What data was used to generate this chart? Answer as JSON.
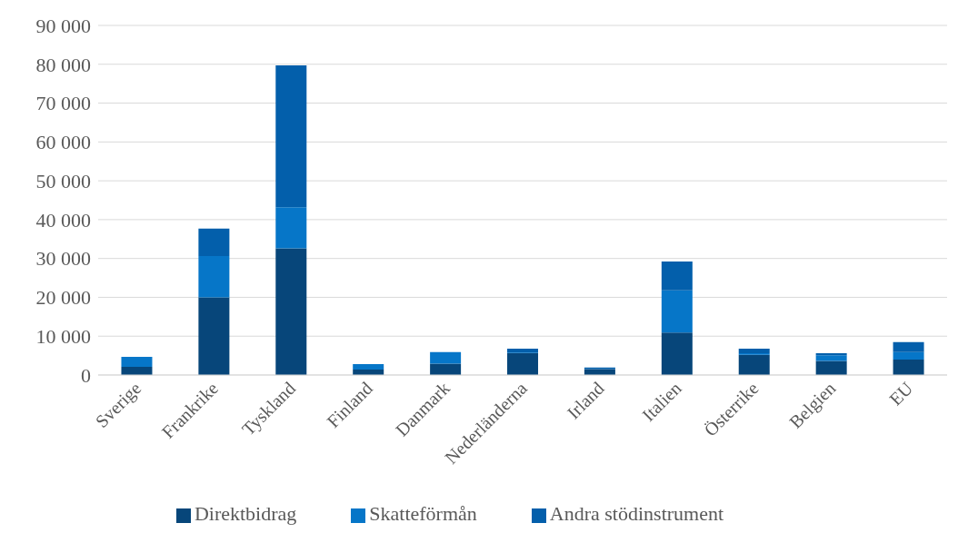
{
  "chart_data": {
    "type": "bar",
    "stacked": true,
    "categories": [
      "Sverige",
      "Frankrike",
      "Tyskland",
      "Finland",
      "Danmark",
      "Nederländerna",
      "Irland",
      "Italien",
      "Österrike",
      "Belgien",
      "EU"
    ],
    "series": [
      {
        "name": "Direktbidrag",
        "color": "#07467a",
        "values": [
          2100,
          20000,
          32600,
          1400,
          2900,
          5600,
          1500,
          10900,
          5200,
          3600,
          4000
        ]
      },
      {
        "name": "Skatteförmån",
        "color": "#0676c8",
        "values": [
          2600,
          10600,
          10600,
          1400,
          3000,
          200,
          0,
          10900,
          400,
          1500,
          1900
        ]
      },
      {
        "name": "Andra stödinstrument",
        "color": "#035fab",
        "values": [
          0,
          7100,
          36500,
          0,
          0,
          1000,
          400,
          7400,
          1200,
          500,
          2600
        ]
      }
    ],
    "ylim": [
      0,
      90000
    ],
    "yticks": [
      {
        "value": 0,
        "label": "0"
      },
      {
        "value": 10000,
        "label": "10 000"
      },
      {
        "value": 20000,
        "label": "20 000"
      },
      {
        "value": 30000,
        "label": "30 000"
      },
      {
        "value": 40000,
        "label": "40 000"
      },
      {
        "value": 50000,
        "label": "50 000"
      },
      {
        "value": 60000,
        "label": "60 000"
      },
      {
        "value": 70000,
        "label": "70 000"
      },
      {
        "value": 80000,
        "label": "80 000"
      },
      {
        "value": 90000,
        "label": "90 000"
      }
    ],
    "grid": "y",
    "legend": "bottom"
  }
}
